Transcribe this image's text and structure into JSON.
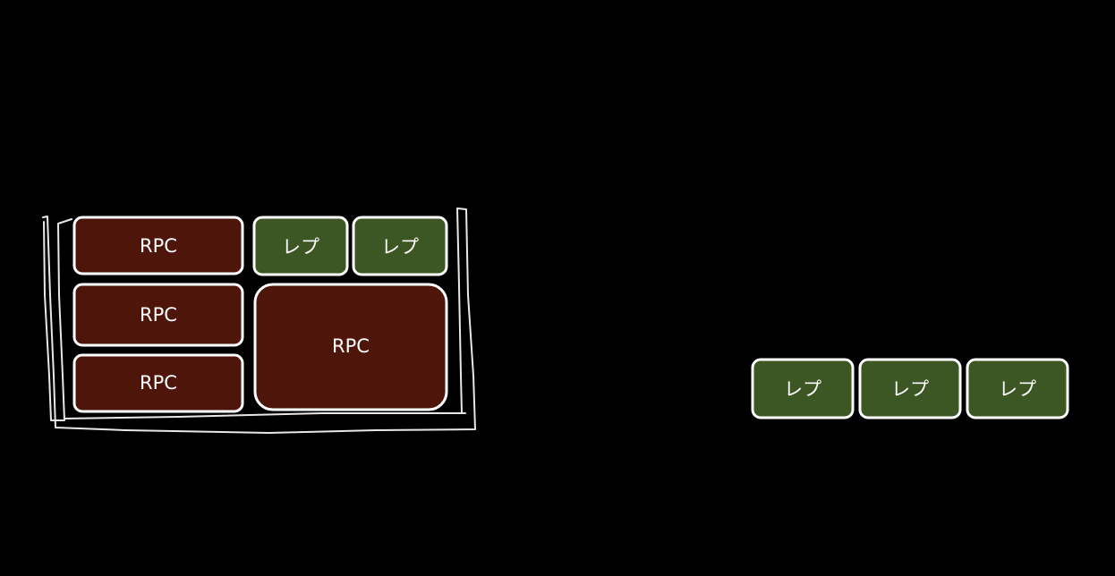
{
  "colors": {
    "background": "#000000",
    "rpc_fill": "#4e150a",
    "rep_fill": "#3c5723",
    "outline": "#ffffff"
  },
  "left_group": {
    "boxes": [
      {
        "kind": "rpc",
        "label": "RPC"
      },
      {
        "kind": "rep",
        "label": "レプ"
      },
      {
        "kind": "rep",
        "label": "レプ"
      },
      {
        "kind": "rpc",
        "label": "RPC"
      },
      {
        "kind": "rpc",
        "label": "RPC"
      },
      {
        "kind": "rpc",
        "label": "RPC"
      }
    ]
  },
  "right_group": {
    "boxes": [
      {
        "kind": "rep",
        "label": "レプ"
      },
      {
        "kind": "rep",
        "label": "レプ"
      },
      {
        "kind": "rep",
        "label": "レプ"
      }
    ]
  }
}
